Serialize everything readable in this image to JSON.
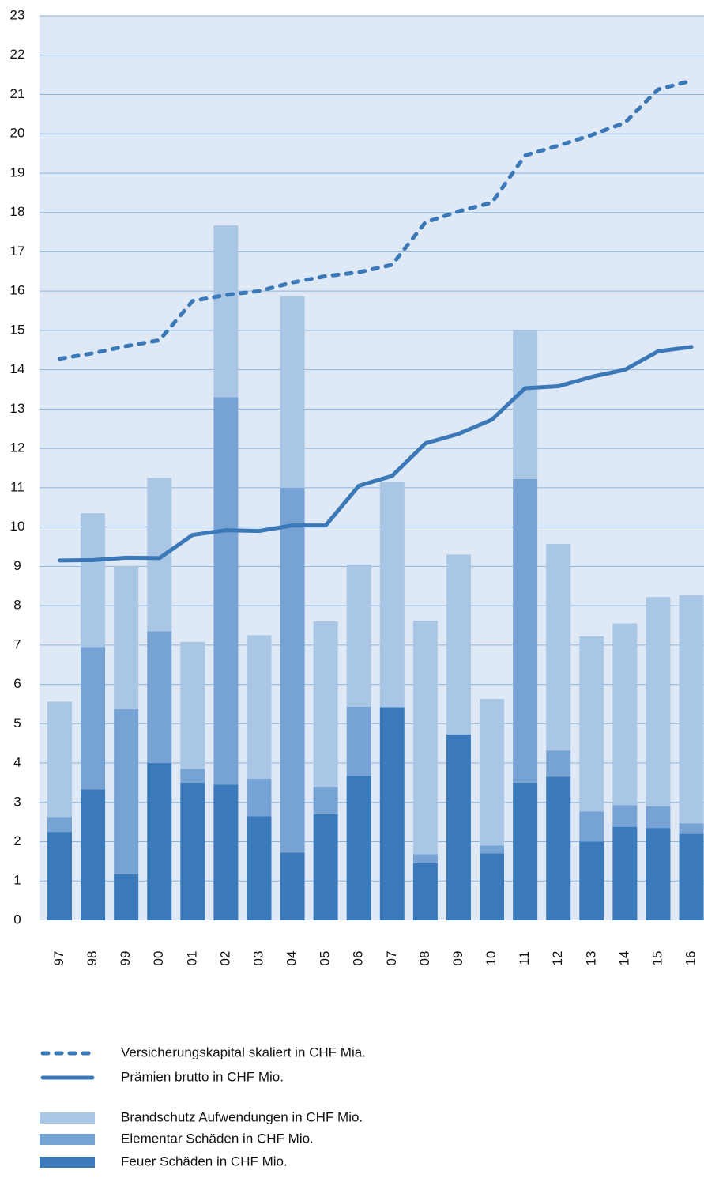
{
  "chart_data": {
    "type": "bar_line",
    "categories": [
      "97",
      "98",
      "99",
      "00",
      "01",
      "02",
      "03",
      "04",
      "05",
      "06",
      "07",
      "08",
      "09",
      "10",
      "11",
      "12",
      "13",
      "14",
      "15",
      "16"
    ],
    "series": [
      {
        "name": "Versicherungskapital skaliert in CHF Mia.",
        "kind": "line",
        "dashed": true,
        "color": "#3a78b8",
        "values": [
          14.28,
          14.42,
          14.6,
          14.75,
          15.75,
          15.9,
          16.0,
          16.22,
          16.38,
          16.48,
          16.67,
          17.75,
          18.03,
          18.25,
          19.45,
          19.7,
          19.97,
          20.28,
          21.13,
          21.35
        ]
      },
      {
        "name": "Prämien brutto in CHF Mio.",
        "kind": "line",
        "dashed": false,
        "color": "#3a78b8",
        "values": [
          9.15,
          9.16,
          9.22,
          9.21,
          9.8,
          9.92,
          9.9,
          10.04,
          10.04,
          11.05,
          11.3,
          12.13,
          12.37,
          12.73,
          13.53,
          13.58,
          13.82,
          14.0,
          14.47,
          14.58
        ]
      },
      {
        "name": "Brandschutz Aufwendungen in CHF Mio.",
        "kind": "bar",
        "stack_order": 2,
        "color": "#a9c6e5",
        "values": [
          2.93,
          3.4,
          3.63,
          3.9,
          3.23,
          4.37,
          3.65,
          4.86,
          4.2,
          3.62,
          5.73,
          5.94,
          4.57,
          3.73,
          3.8,
          5.25,
          4.45,
          4.62,
          5.32,
          5.8
        ]
      },
      {
        "name": "Elementar Schäden in CHF Mio.",
        "kind": "bar",
        "stack_order": 1,
        "color": "#76a3d4",
        "values": [
          0.38,
          3.62,
          4.2,
          3.35,
          0.35,
          9.85,
          0.95,
          9.28,
          0.7,
          1.76,
          0,
          0.23,
          0,
          0.2,
          7.72,
          0.67,
          0.77,
          0.55,
          0.55,
          0.27
        ]
      },
      {
        "name": "Feuer Schäden in CHF Mio.",
        "kind": "bar",
        "stack_order": 0,
        "color": "#3a7aba",
        "values": [
          2.25,
          3.33,
          1.17,
          4.0,
          3.5,
          3.45,
          2.65,
          1.72,
          2.7,
          3.67,
          5.42,
          1.45,
          4.73,
          1.7,
          3.5,
          3.65,
          2.0,
          2.38,
          2.35,
          2.2
        ]
      }
    ],
    "ylim": [
      0,
      23
    ],
    "yticks": [
      0,
      1,
      2,
      3,
      4,
      5,
      6,
      7,
      8,
      9,
      10,
      11,
      12,
      13,
      14,
      15,
      16,
      17,
      18,
      19,
      20,
      21,
      22,
      23
    ],
    "grid": true,
    "legend": "bottom"
  }
}
